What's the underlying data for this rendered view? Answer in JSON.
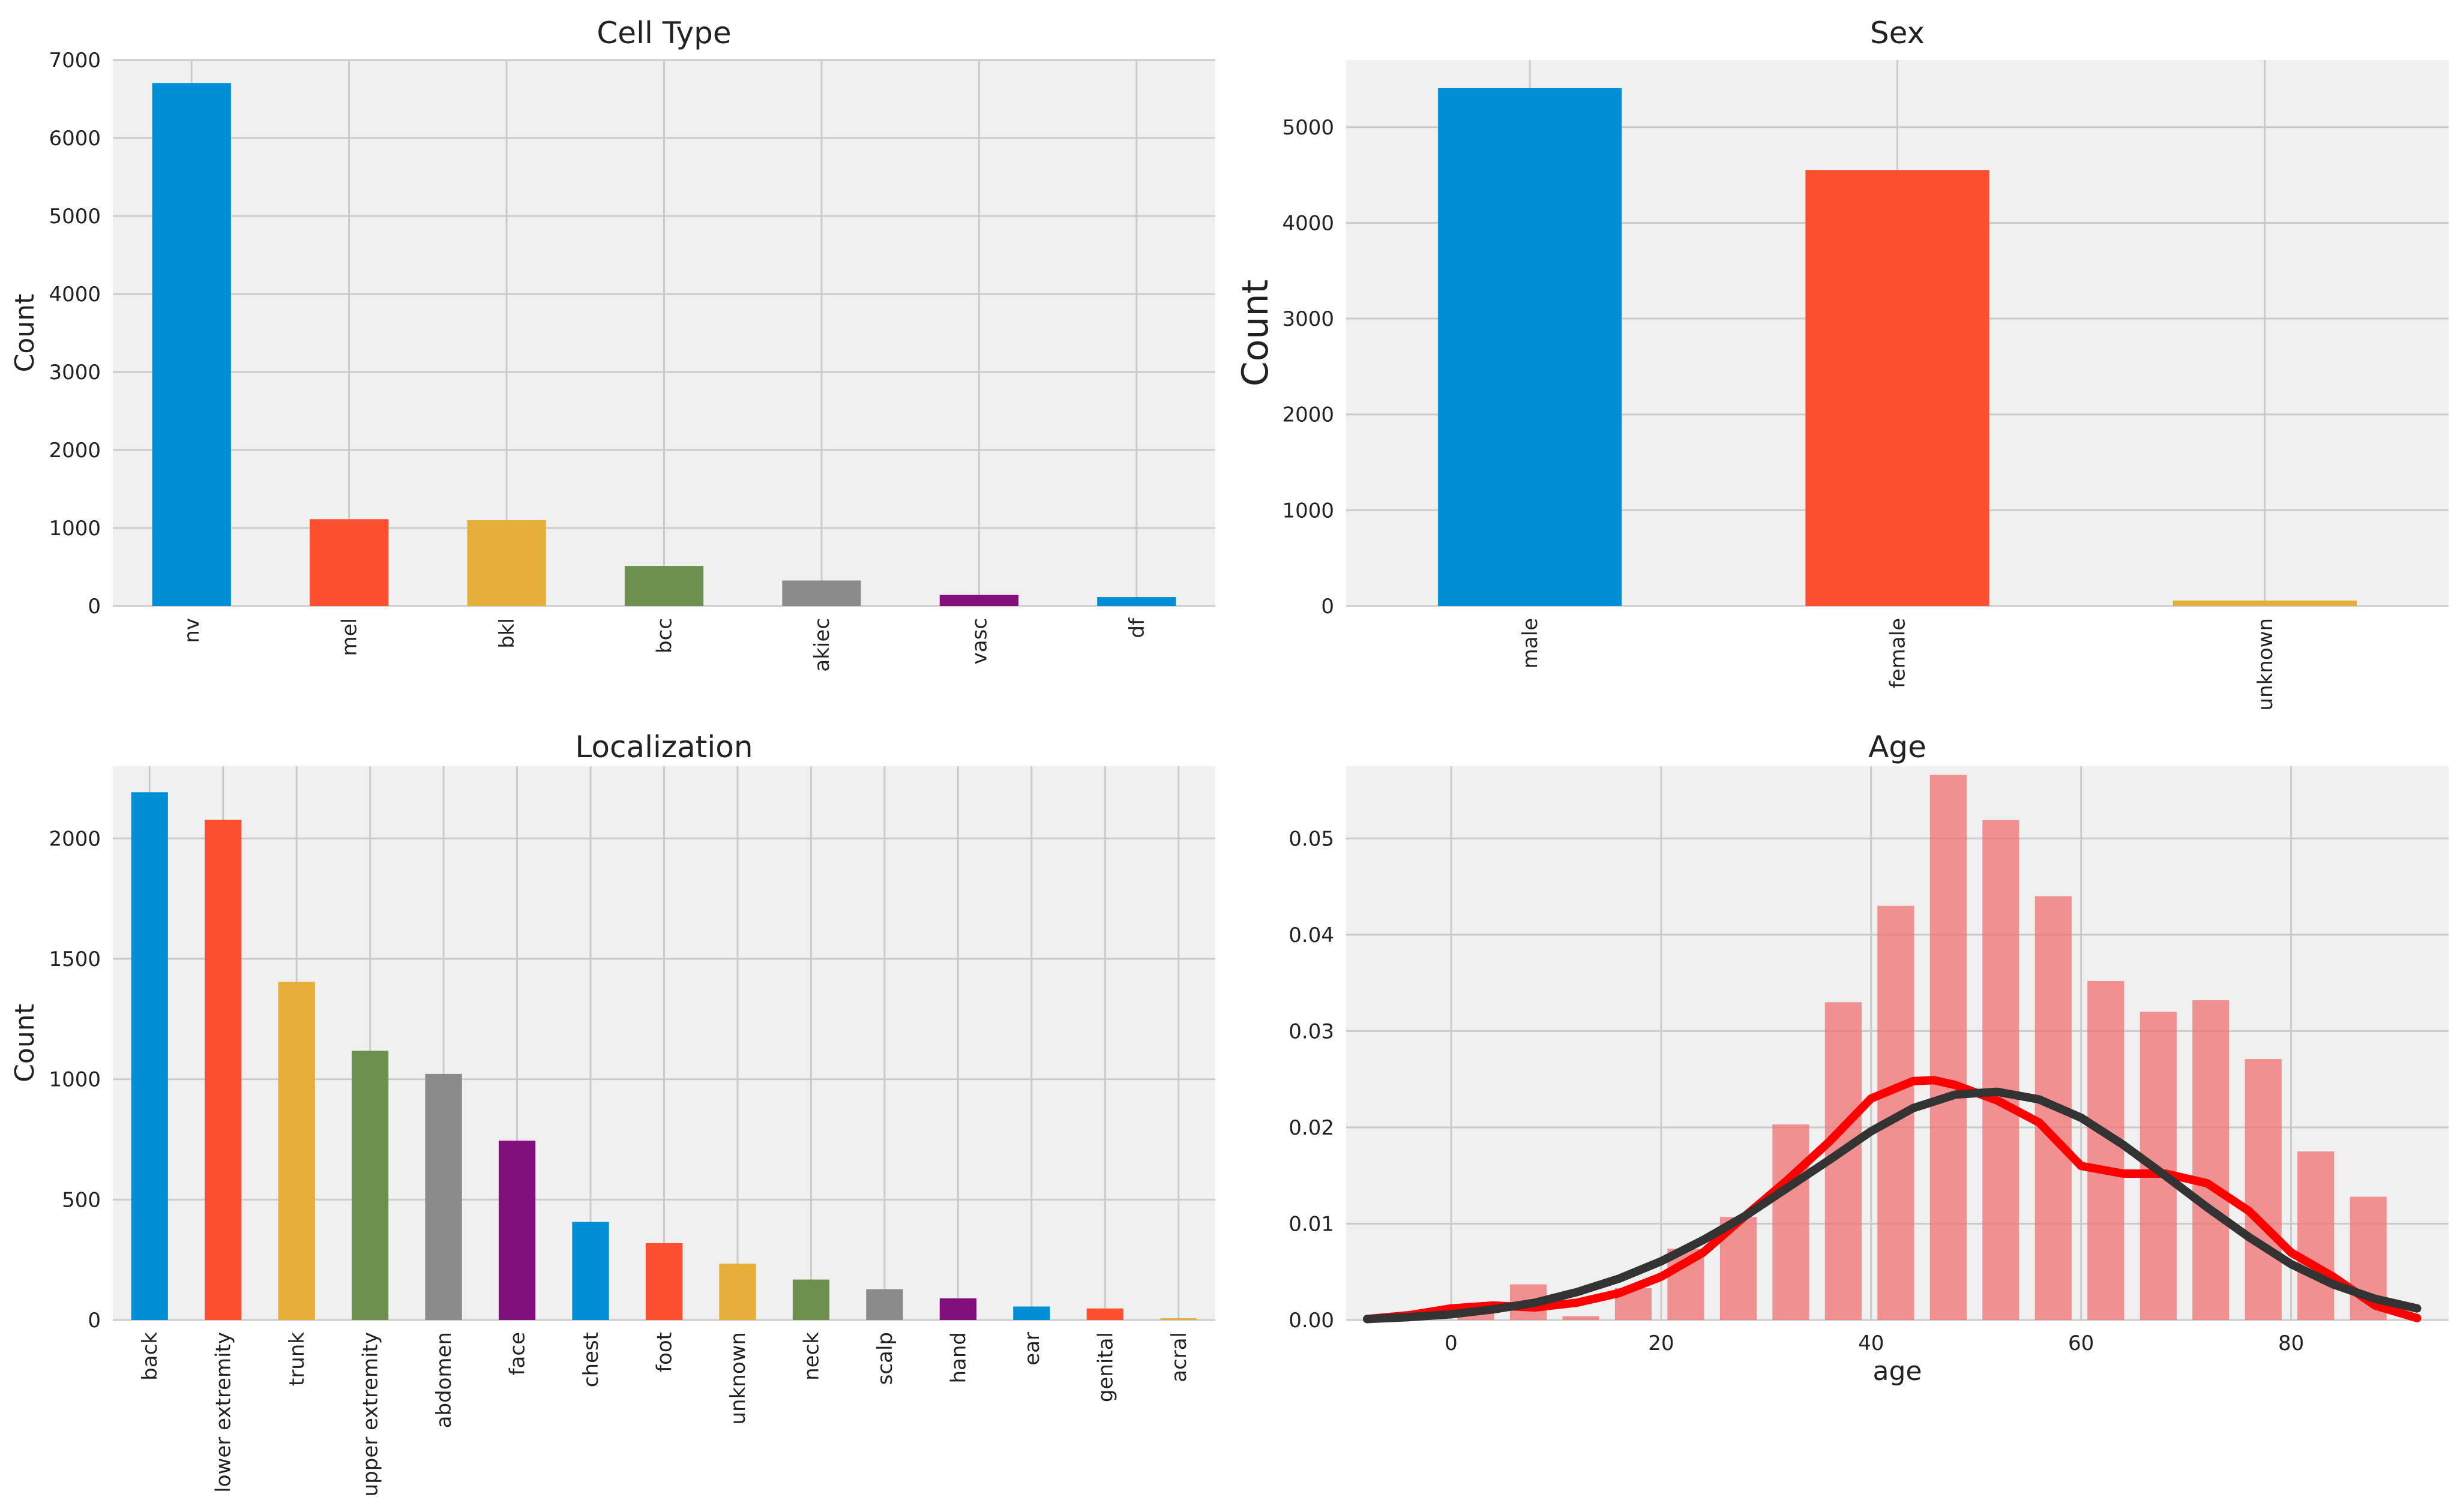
{
  "palette": [
    "#008fd5",
    "#fc4f30",
    "#e5ae38",
    "#6d904f",
    "#8b8b8b",
    "#810f7c"
  ],
  "chart_data": [
    {
      "type": "bar",
      "title": "Cell Type",
      "xlabel": "",
      "ylabel": "Count",
      "categories": [
        "nv",
        "mel",
        "bkl",
        "bcc",
        "akiec",
        "vasc",
        "df"
      ],
      "values": [
        6705,
        1113,
        1099,
        514,
        327,
        142,
        115
      ],
      "ylim": [
        0,
        7000
      ],
      "yticks": [
        "0",
        "1000",
        "2000",
        "3000",
        "4000",
        "5000",
        "6000",
        "7000"
      ],
      "grid": true
    },
    {
      "type": "bar",
      "title": "Sex",
      "xlabel": "",
      "ylabel": "Count",
      "categories": [
        "male",
        "female",
        "unknown"
      ],
      "values": [
        5406,
        4552,
        57
      ],
      "ylim": [
        0,
        5700
      ],
      "yticks": [
        "0",
        "1000",
        "2000",
        "3000",
        "4000",
        "5000"
      ],
      "grid": true
    },
    {
      "type": "bar",
      "title": "Localization",
      "xlabel": "",
      "ylabel": "Count",
      "categories": [
        "back",
        "lower extremity",
        "trunk",
        "upper extremity",
        "abdomen",
        "face",
        "chest",
        "foot",
        "unknown",
        "neck",
        "scalp",
        "hand",
        "ear",
        "genital",
        "acral"
      ],
      "values": [
        2192,
        2077,
        1404,
        1118,
        1022,
        745,
        407,
        319,
        234,
        168,
        128,
        90,
        56,
        48,
        7
      ],
      "ylim": [
        0,
        2300
      ],
      "yticks": [
        "0",
        "500",
        "1000",
        "1500",
        "2000"
      ],
      "grid": true
    },
    {
      "type": "bar",
      "subtype": "histogram with density curves",
      "title": "Age",
      "xlabel": "age",
      "ylabel": "",
      "xlim": [
        -10,
        95
      ],
      "ylim": [
        0,
        0.0575
      ],
      "xticks": [
        "0",
        "20",
        "40",
        "60",
        "80"
      ],
      "yticks": [
        "0.00",
        "0.01",
        "0.02",
        "0.03",
        "0.04",
        "0.05"
      ],
      "grid": true,
      "histogram": {
        "bins": [
          0,
          5,
          10,
          15,
          20,
          25,
          30,
          35,
          40,
          45,
          50,
          55,
          60,
          65,
          70,
          75,
          80,
          85
        ],
        "values": [
          0.0016,
          0.0037,
          0.0004,
          0.0033,
          0.0074,
          0.0107,
          0.0203,
          0.033,
          0.043,
          0.0566,
          0.0519,
          0.044,
          0.0352,
          0.032,
          0.0332,
          0.0271,
          0.0175,
          0.0128
        ],
        "color": "#f07070"
      },
      "series": [
        {
          "x": [
            -8,
            -4,
            0,
            4,
            8,
            12,
            16,
            20,
            24,
            28,
            32,
            36,
            40,
            44,
            46,
            48,
            52,
            56,
            60,
            64,
            68,
            72,
            76,
            80,
            84,
            88,
            92
          ],
          "values": [
            0.0001,
            0.0005,
            0.0012,
            0.0015,
            0.0013,
            0.0018,
            0.0028,
            0.0045,
            0.007,
            0.0108,
            0.0145,
            0.0185,
            0.023,
            0.0248,
            0.0249,
            0.0244,
            0.0228,
            0.0205,
            0.016,
            0.0152,
            0.0152,
            0.0142,
            0.0113,
            0.007,
            0.0045,
            0.0015,
            0.0002
          ],
          "color": "#ff0000"
        },
        {
          "x": [
            -8,
            -4,
            0,
            4,
            8,
            12,
            16,
            20,
            24,
            28,
            32,
            36,
            40,
            44,
            48,
            52,
            56,
            60,
            64,
            68,
            72,
            76,
            80,
            84,
            88,
            92
          ],
          "values": [
            0.0001,
            0.0003,
            0.0006,
            0.0011,
            0.0018,
            0.0029,
            0.0043,
            0.0061,
            0.0083,
            0.0108,
            0.0137,
            0.0166,
            0.0196,
            0.022,
            0.0234,
            0.0237,
            0.0229,
            0.021,
            0.0182,
            0.015,
            0.0117,
            0.0086,
            0.0058,
            0.0037,
            0.0022,
            0.0012
          ],
          "color": "#333333"
        }
      ]
    }
  ]
}
